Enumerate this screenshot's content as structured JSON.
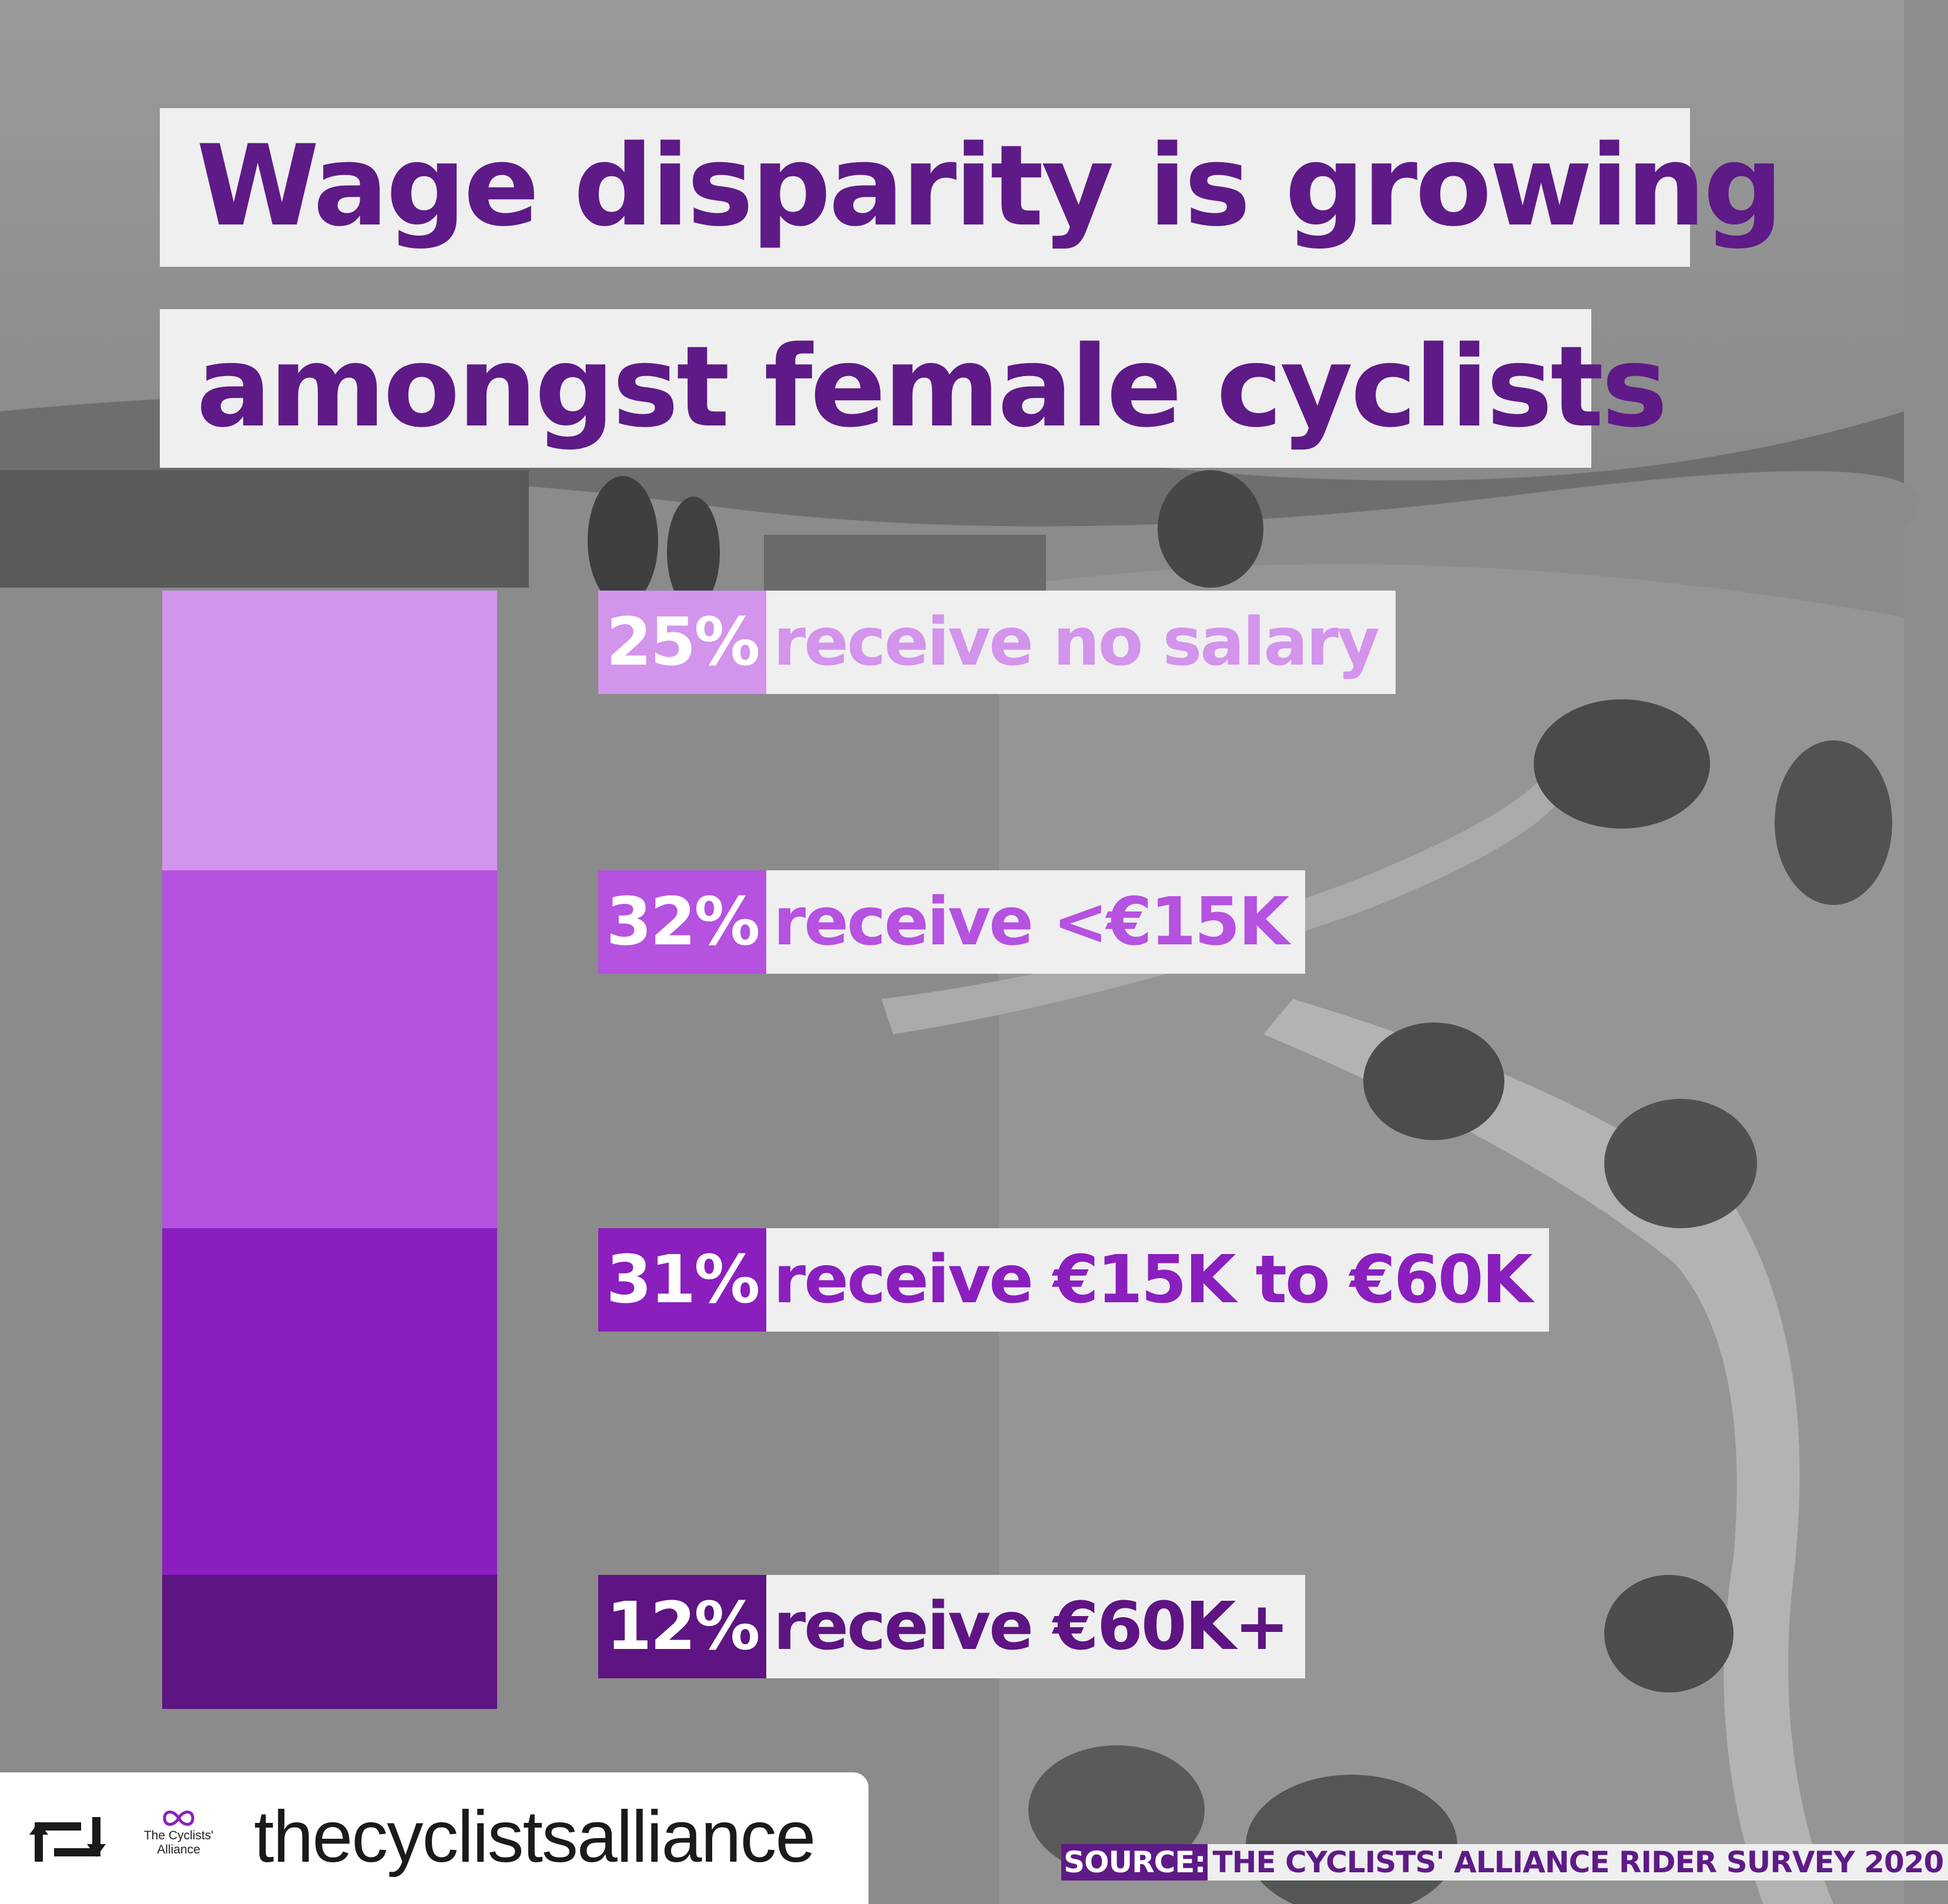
{
  "title": {
    "line1": "Wage disparity is growing",
    "line2": "amongst female cyclists"
  },
  "chart_data": {
    "type": "bar",
    "stacked": true,
    "unit": "%",
    "categories": [
      "receive no salary",
      "receive <€15K",
      "receive €15K to €60K",
      "receive €60K+"
    ],
    "values": [
      25,
      32,
      31,
      12
    ],
    "labels": [
      {
        "pct": "25%",
        "text": "receive no salary"
      },
      {
        "pct": "32%",
        "text": "receive <€15K"
      },
      {
        "pct": "31%",
        "text": "receive €15K to €60K"
      },
      {
        "pct": "12%",
        "text": "receive €60K+"
      }
    ],
    "colors": [
      "#d394ec",
      "#b552e0",
      "#8a1fbe",
      "#5e1482"
    ],
    "text_colors": [
      "#d394ec",
      "#b552e0",
      "#8a1fbe",
      "#5e1482"
    ]
  },
  "source": {
    "label": "SOURCE:",
    "text": "THE CYCLISTS' ALLIANCE RIDER SURVEY 2020"
  },
  "repost": {
    "icon": "repost-icon",
    "brand_line1": "The Cyclists'",
    "brand_line2": "Alliance",
    "handle": "thecyclistsalliance"
  }
}
